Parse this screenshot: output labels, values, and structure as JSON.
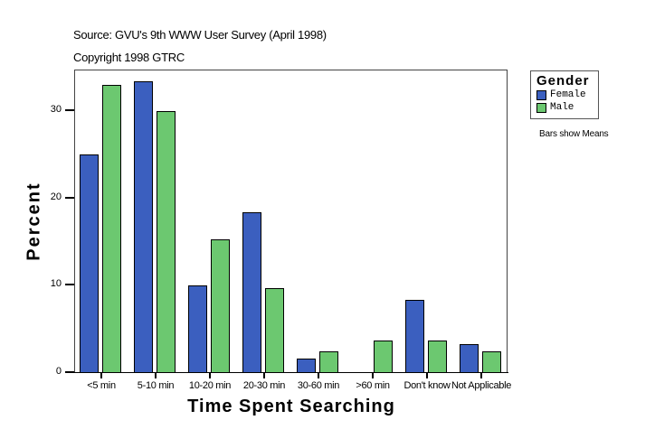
{
  "header": {
    "source": "Source: GVU's 9th WWW User Survey (April 1998)",
    "copyright": "Copyright 1998 GTRC"
  },
  "legend": {
    "title": "Gender",
    "items": [
      {
        "label": "Female",
        "color": "#3b5fbf"
      },
      {
        "label": "Male",
        "color": "#6cc870"
      }
    ]
  },
  "note": "Bars show Means",
  "axes": {
    "y_ticks": [
      "0",
      "10",
      "20",
      "30"
    ],
    "x_labels": [
      "<5 min",
      "5-10 min",
      "10-20 min",
      "20-30 min",
      "30-60 min",
      ">60 min",
      "Don't know",
      "Not Applicable"
    ]
  },
  "chart_data": {
    "type": "bar",
    "title": "",
    "xlabel": "Time Spent Searching",
    "ylabel": "Percent",
    "categories": [
      "<5 min",
      "5-10 min",
      "10-20 min",
      "20-30 min",
      "30-60 min",
      ">60 min",
      "Don't know",
      "Not Applicable"
    ],
    "series": [
      {
        "name": "Female",
        "color": "#3b5fbf",
        "values": [
          24.9,
          33.3,
          9.9,
          18.3,
          1.6,
          0.0,
          8.3,
          3.2
        ]
      },
      {
        "name": "Male",
        "color": "#6cc870",
        "values": [
          32.9,
          29.9,
          15.2,
          9.6,
          2.4,
          3.6,
          3.6,
          2.4
        ]
      }
    ],
    "ylim": [
      0,
      34.6
    ],
    "yticks": [
      0,
      10,
      20,
      30
    ],
    "grid": false,
    "legend_position": "right",
    "legend_title": "Gender",
    "annotations": [
      "Source: GVU's 9th WWW User Survey (April 1998)",
      "Copyright 1998 GTRC",
      "Bars show Means"
    ]
  }
}
